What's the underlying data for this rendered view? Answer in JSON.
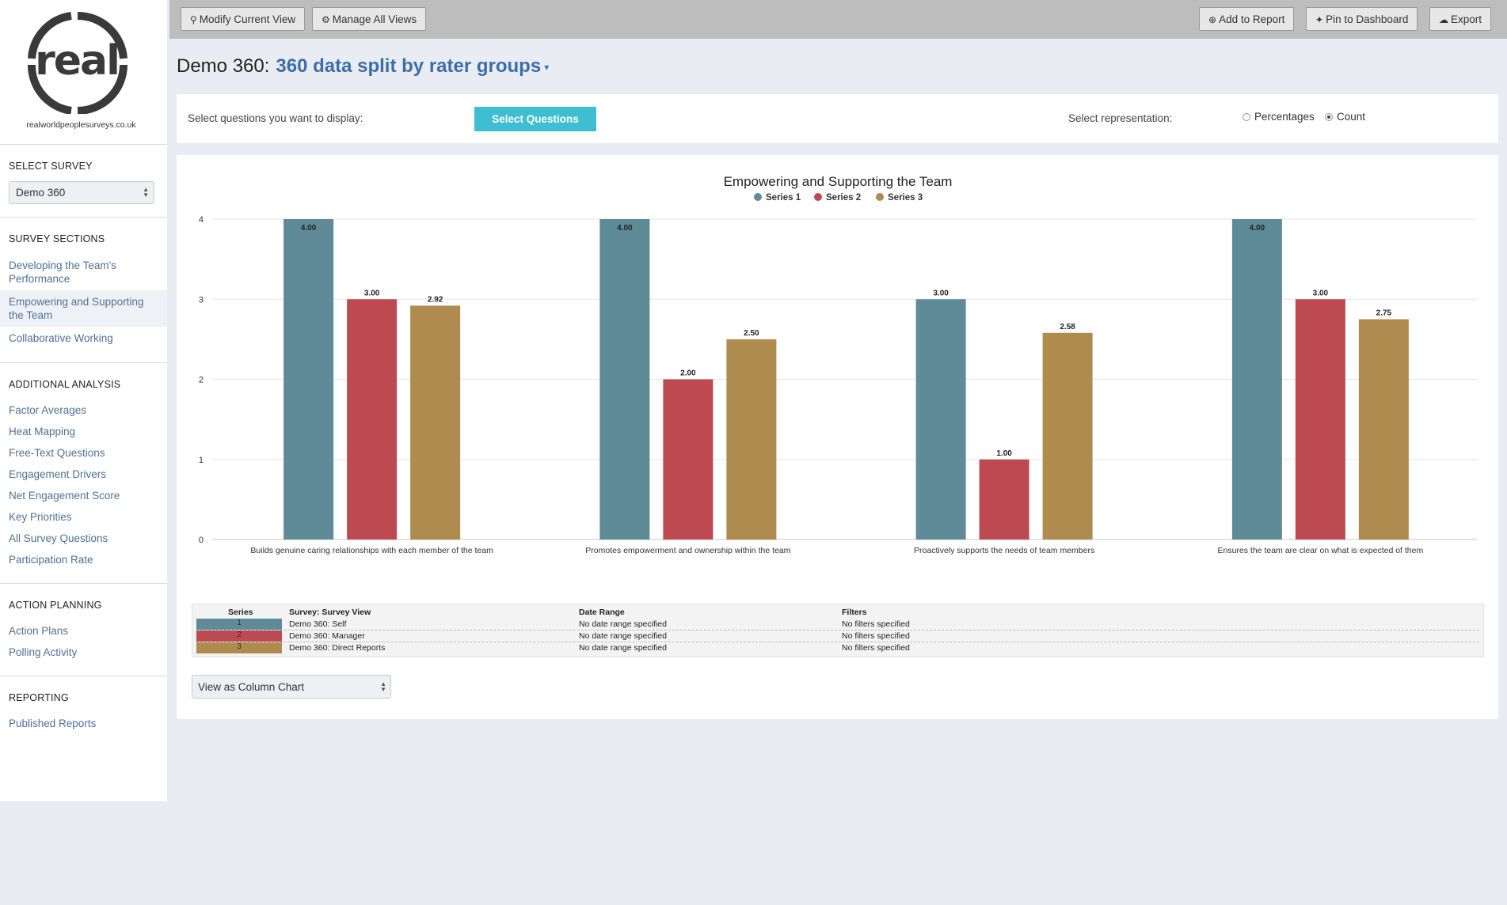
{
  "brand": {
    "caption": "realworldpeoplesurveys.co.uk"
  },
  "sidebar": {
    "select_survey": {
      "heading": "SELECT SURVEY",
      "value": "Demo 360"
    },
    "survey_sections": {
      "heading": "SURVEY SECTIONS",
      "items": [
        "Developing the Team's Performance",
        "Empowering and Supporting the Team",
        "Collaborative Working"
      ],
      "active_index": 1
    },
    "additional_analysis": {
      "heading": "ADDITIONAL ANALYSIS",
      "items": [
        "Factor Averages",
        "Heat Mapping",
        "Free-Text Questions",
        "Engagement Drivers",
        "Net Engagement Score",
        "Key Priorities",
        "All Survey Questions",
        "Participation Rate"
      ]
    },
    "action_planning": {
      "heading": "ACTION PLANNING",
      "items": [
        "Action Plans",
        "Polling Activity"
      ]
    },
    "reporting": {
      "heading": "REPORTING",
      "items": [
        "Published Reports"
      ]
    }
  },
  "toolbar": {
    "modify": "Modify Current View",
    "manage": "Manage All Views",
    "add_report": "Add to Report",
    "pin": "Pin to Dashboard",
    "export": "Export"
  },
  "header": {
    "survey": "Demo 360:",
    "view": "360 data split by rater groups"
  },
  "controls": {
    "questions_label": "Select questions you want to display:",
    "questions_button": "Select Questions",
    "representation_label": "Select representation:",
    "options": [
      "Percentages",
      "Count"
    ],
    "selected": "Count"
  },
  "colors": {
    "series1": "#5f8a97",
    "series2": "#bc4a50",
    "series3": "#b08b50",
    "accent": "#3ebfd1",
    "link": "#4f7195"
  },
  "chart_data": {
    "type": "bar",
    "title": "Empowering and Supporting the Team",
    "categories": [
      "Builds genuine caring relationships with each member of the team",
      "Promotes empowerment and ownership within the team",
      "Proactively supports the needs of team members",
      "Ensures the team are clear on what is expected of them"
    ],
    "series": [
      {
        "name": "Series 1",
        "values": [
          4.0,
          4.0,
          3.0,
          4.0
        ]
      },
      {
        "name": "Series 2",
        "values": [
          3.0,
          2.0,
          1.0,
          3.0
        ]
      },
      {
        "name": "Series 3",
        "values": [
          2.92,
          2.5,
          2.58,
          2.75
        ]
      }
    ],
    "ylim": [
      0,
      4
    ],
    "yticks": [
      0,
      1,
      2,
      3,
      4
    ],
    "legend": "top-center",
    "grid": true
  },
  "series_table": {
    "headers": [
      "Series",
      "Survey: Survey View",
      "Date Range",
      "Filters"
    ],
    "rows": [
      {
        "num": "1",
        "view": "Demo 360: Self",
        "date": "No date range specified",
        "filters": "No filters specified"
      },
      {
        "num": "2",
        "view": "Demo 360: Manager",
        "date": "No date range specified",
        "filters": "No filters specified"
      },
      {
        "num": "3",
        "view": "Demo 360: Direct Reports",
        "date": "No date range specified",
        "filters": "No filters specified"
      }
    ]
  },
  "view_select": "View as Column Chart"
}
